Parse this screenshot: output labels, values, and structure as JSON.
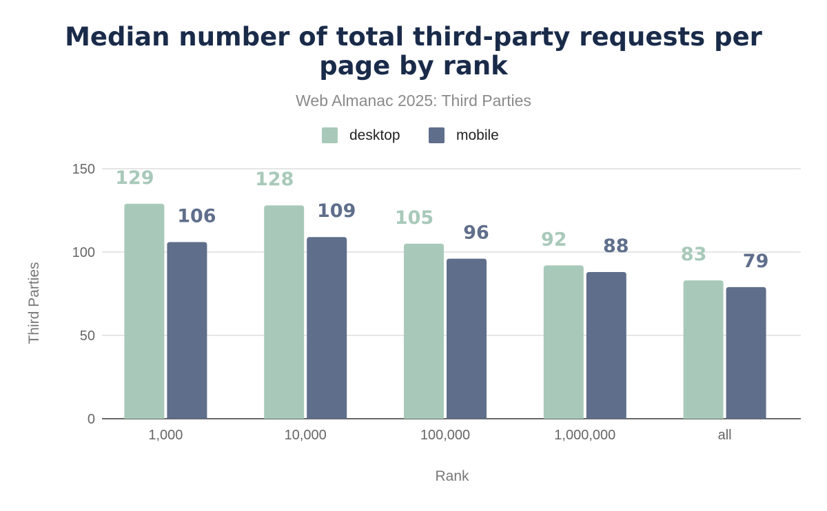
{
  "chart_data": {
    "type": "bar",
    "title_lines": [
      "Median number of total third-party requests per",
      "page by rank"
    ],
    "subtitle": "Web Almanac 2025: Third Parties",
    "xlabel": "Rank",
    "ylabel": "Third Parties",
    "categories": [
      "1,000",
      "10,000",
      "100,000",
      "1,000,000",
      "all"
    ],
    "series": [
      {
        "name": "desktop",
        "color": "#a8c9b9",
        "values": [
          129,
          128,
          105,
          92,
          83
        ]
      },
      {
        "name": "mobile",
        "color": "#5f6e8b",
        "values": [
          106,
          109,
          96,
          88,
          79
        ]
      }
    ],
    "ylim": [
      0,
      150
    ],
    "yticks": [
      0,
      50,
      100,
      150
    ],
    "grid": true,
    "legend_position": "top",
    "data_labels": true
  }
}
